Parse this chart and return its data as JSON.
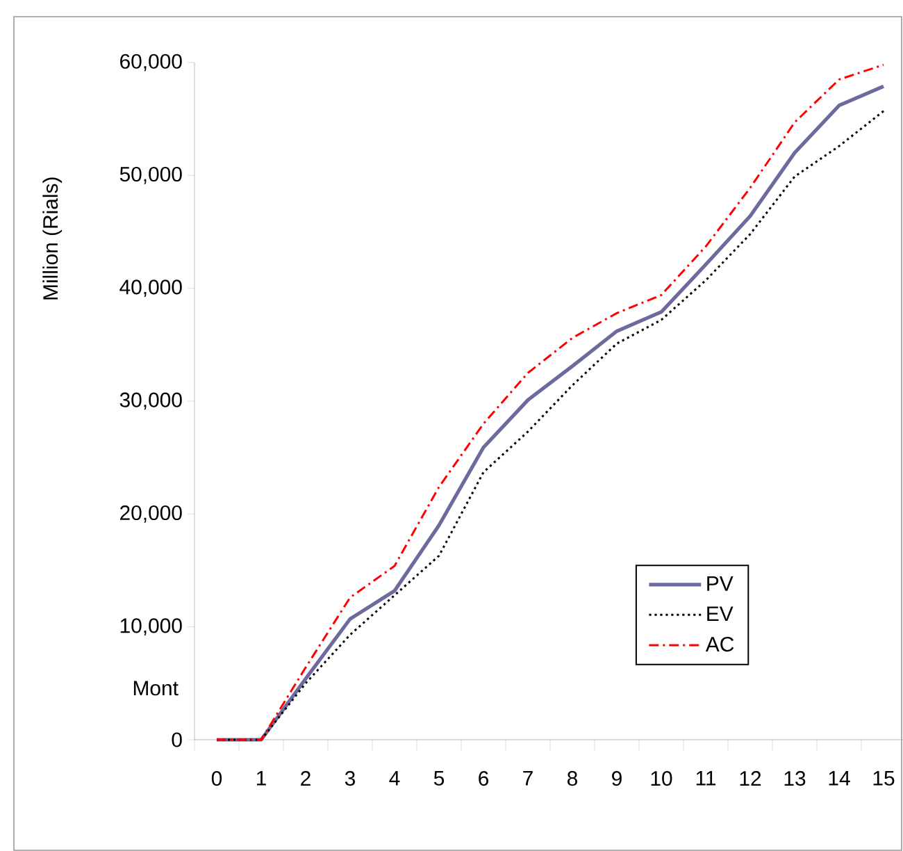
{
  "chart_data": {
    "type": "line",
    "xlabel": "Mont",
    "ylabel": "Million (Rials)",
    "categories": [
      "0",
      "1",
      "2",
      "3",
      "4",
      "5",
      "6",
      "7",
      "8",
      "9",
      "10",
      "11",
      "12",
      "13",
      "14",
      "15"
    ],
    "series": [
      {
        "name": "PV",
        "color": "#6b6b9e",
        "line_style": "solid",
        "values": [
          0,
          0,
          5400,
          10700,
          13200,
          19000,
          25900,
          30100,
          33100,
          36200,
          37900,
          42100,
          46400,
          52000,
          56200,
          57900
        ]
      },
      {
        "name": "EV",
        "color": "#000000",
        "line_style": "dotted",
        "values": [
          0,
          0,
          5000,
          9300,
          12800,
          16300,
          23700,
          27300,
          31400,
          35100,
          37200,
          40700,
          44800,
          49900,
          52600,
          55700
        ]
      },
      {
        "name": "AC",
        "color": "#ff0000",
        "line_style": "dashdot",
        "values": [
          0,
          0,
          6400,
          12600,
          15400,
          22400,
          28000,
          32500,
          35600,
          37800,
          39400,
          43700,
          48900,
          54700,
          58500,
          59800
        ]
      }
    ],
    "ylim": [
      0,
      60000
    ],
    "yticks": [
      {
        "value": 0,
        "label": "0"
      },
      {
        "value": 10000,
        "label": "10,000"
      },
      {
        "value": 20000,
        "label": "20,000"
      },
      {
        "value": 30000,
        "label": "30,000"
      },
      {
        "value": 40000,
        "label": "40,000"
      },
      {
        "value": 50000,
        "label": "50,000"
      },
      {
        "value": 60000,
        "label": "60,000"
      }
    ],
    "grid": false,
    "legend": "right",
    "marker": "none"
  }
}
